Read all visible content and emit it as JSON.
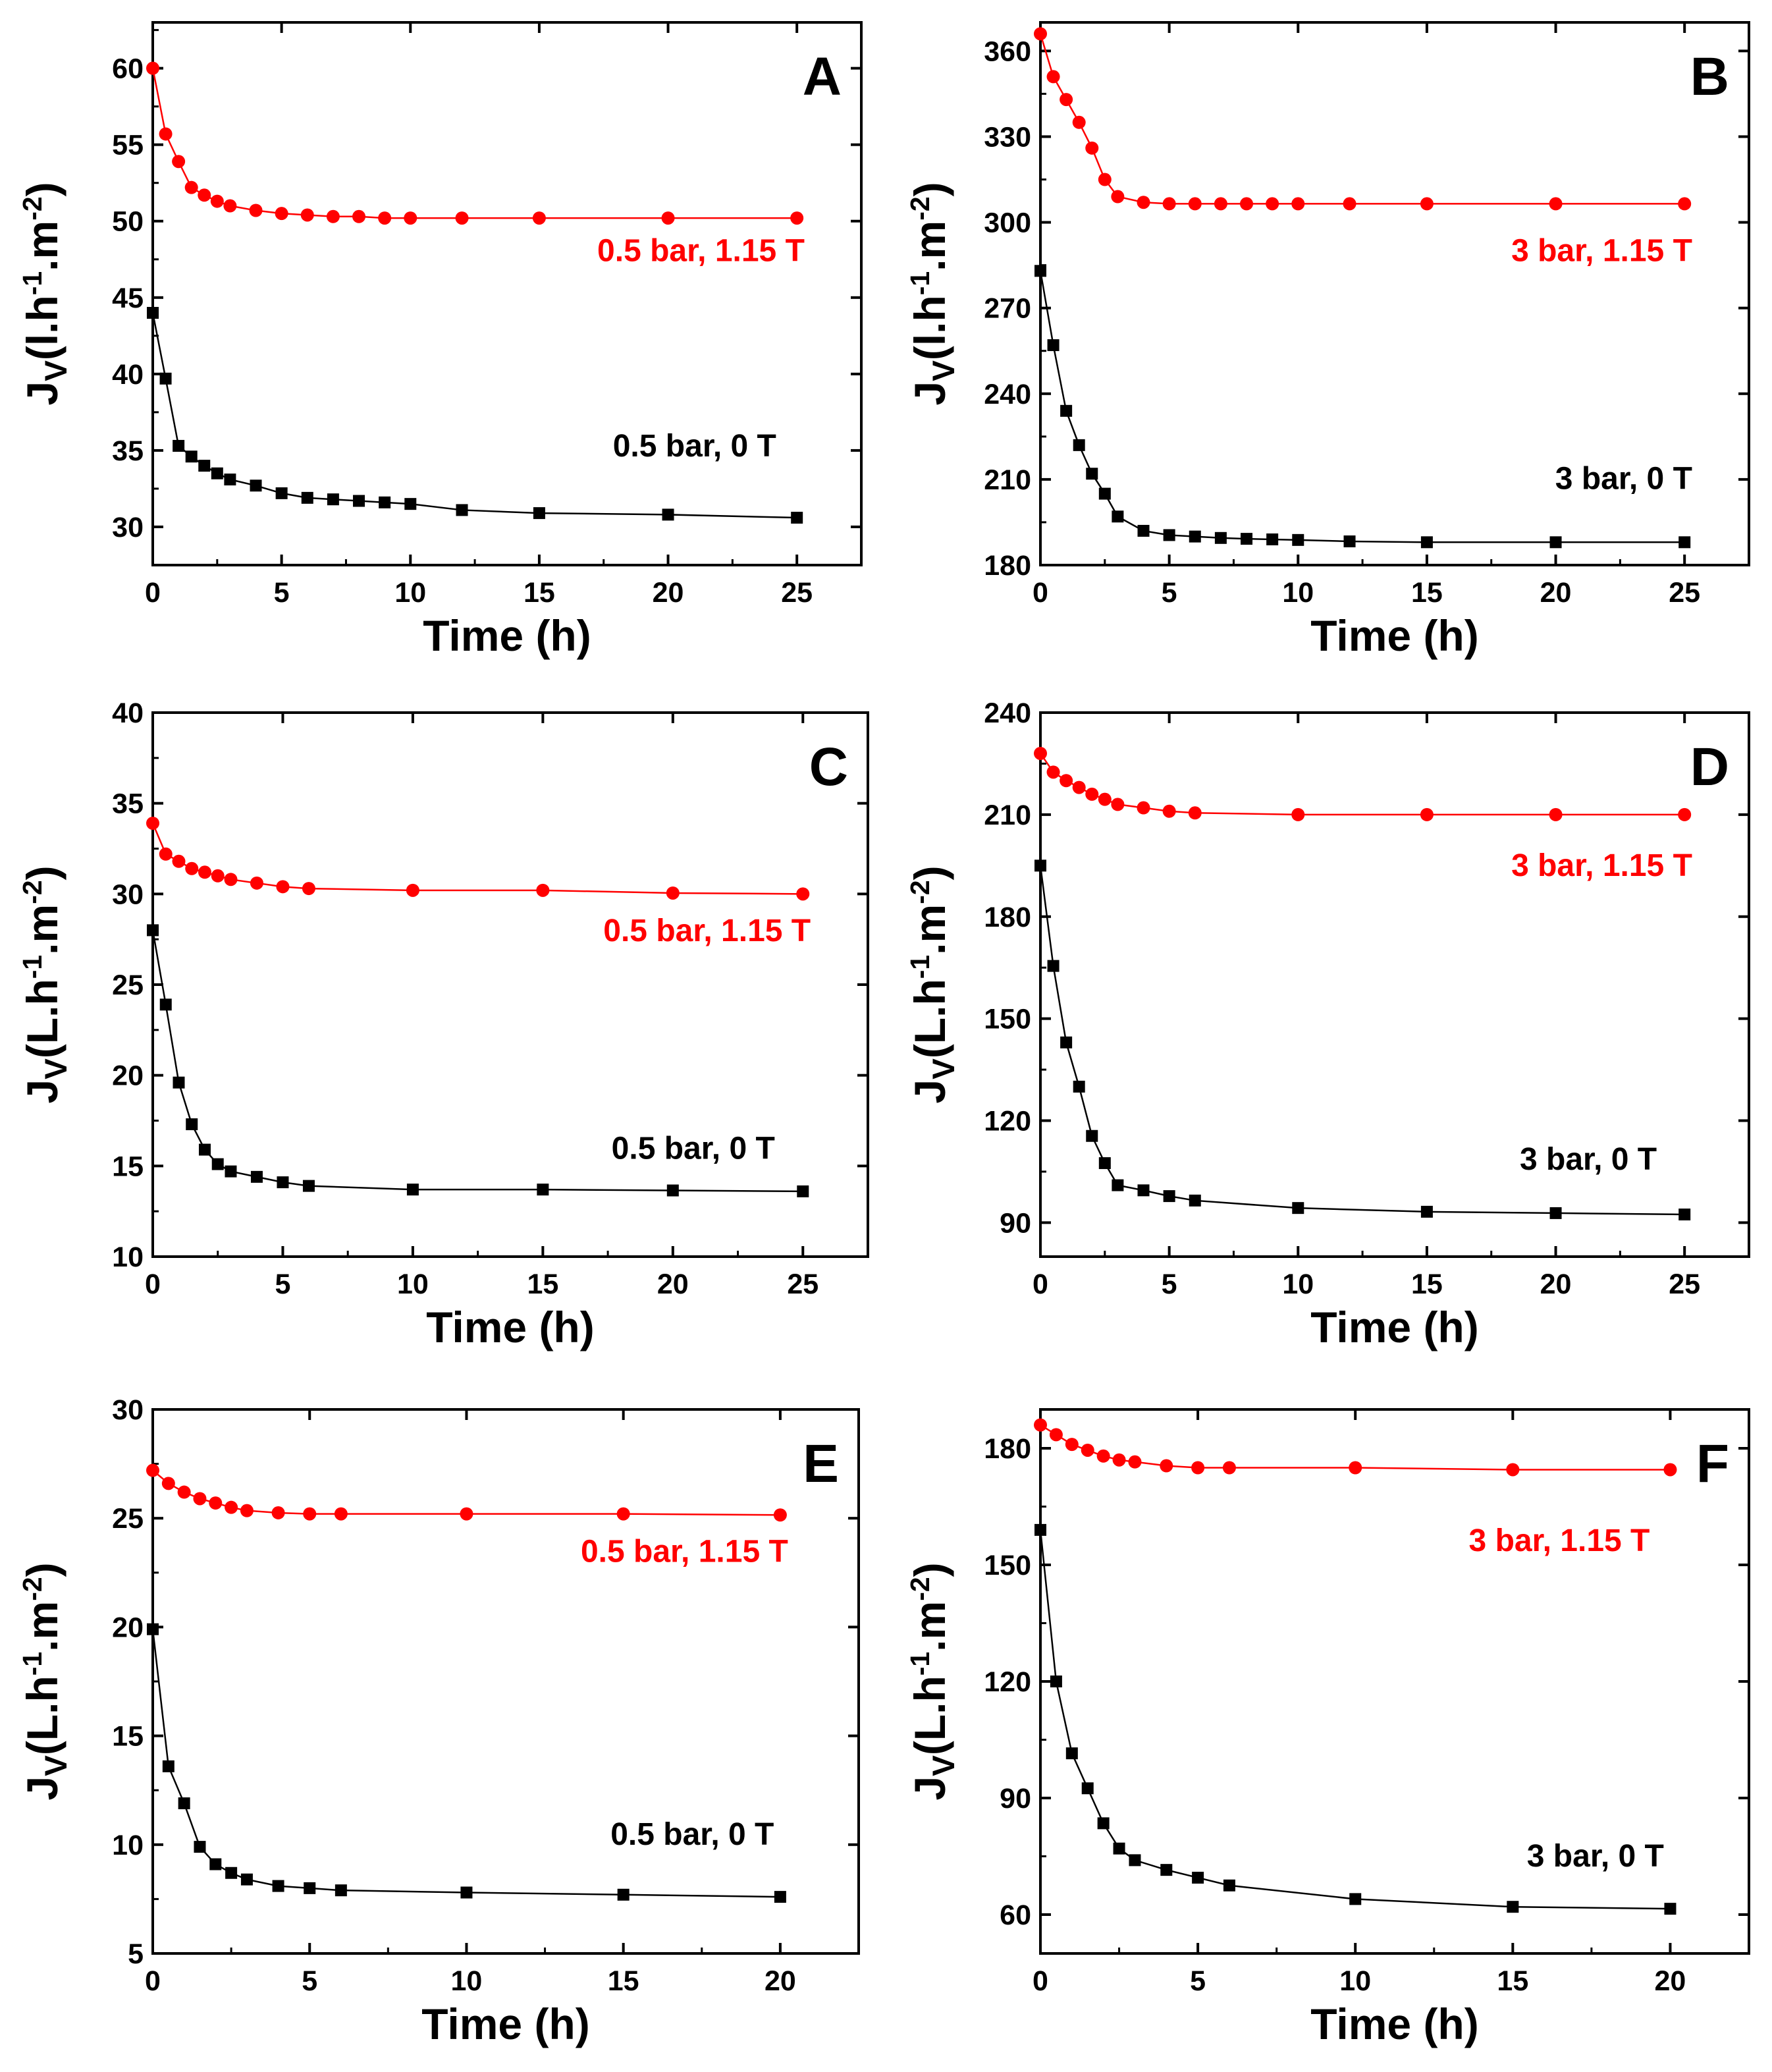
{
  "colors": {
    "magnetic": "#ff0000",
    "no_field": "#000000",
    "axes": "#000000"
  },
  "chart_data": [
    {
      "type": "line",
      "panel": "A",
      "xlabel": "Time (h)",
      "ylabel_main": "J",
      "ylabel_sub": "V",
      "ylabel_pre": "(l.h",
      "ylabel_sup1": "-1",
      "ylabel_mid": ".m",
      "ylabel_sup2": "-2",
      "ylabel_post": ")",
      "xlim": [
        0,
        27.5
      ],
      "ylim": [
        27.5,
        63
      ],
      "xticks": [
        0,
        5,
        10,
        15,
        20,
        25
      ],
      "yticks": [
        30,
        35,
        40,
        45,
        50,
        55,
        60
      ],
      "series": [
        {
          "name": "0.5 bar, 1.15 T",
          "color": "#ff0000",
          "marker": "circle",
          "x": [
            0,
            0.5,
            1,
            1.5,
            2,
            2.5,
            3,
            4,
            5,
            6,
            7,
            8,
            9,
            10,
            12,
            15,
            20,
            25
          ],
          "y": [
            60,
            55.7,
            53.9,
            52.2,
            51.7,
            51.3,
            51.0,
            50.7,
            50.5,
            50.4,
            50.3,
            50.3,
            50.2,
            50.2,
            50.2,
            50.2,
            50.2,
            50.2
          ]
        },
        {
          "name": "0.5 bar, 0 T",
          "color": "#000000",
          "marker": "square",
          "x": [
            0,
            0.5,
            1,
            1.5,
            2,
            2.5,
            3,
            4,
            5,
            6,
            7,
            8,
            9,
            10,
            12,
            15,
            20,
            25
          ],
          "y": [
            44,
            39.7,
            35.3,
            34.6,
            34.0,
            33.5,
            33.1,
            32.7,
            32.2,
            31.9,
            31.8,
            31.7,
            31.6,
            31.5,
            31.1,
            30.9,
            30.8,
            30.6
          ]
        }
      ]
    },
    {
      "type": "line",
      "panel": "B",
      "xlabel": "Time (h)",
      "ylabel_main": "J",
      "ylabel_sub": "V",
      "ylabel_pre": "(l.h",
      "ylabel_sup1": "-1",
      "ylabel_mid": ".m",
      "ylabel_sup2": "-2",
      "ylabel_post": ")",
      "xlim": [
        0,
        27.5
      ],
      "ylim": [
        180,
        370
      ],
      "xticks": [
        0,
        5,
        10,
        15,
        20,
        25
      ],
      "yticks": [
        180,
        210,
        240,
        270,
        300,
        330,
        360
      ],
      "series": [
        {
          "name": "3 bar, 1.15 T",
          "color": "#ff0000",
          "marker": "circle",
          "x": [
            0,
            0.5,
            1,
            1.5,
            2,
            2.5,
            3,
            4,
            5,
            6,
            7,
            8,
            9,
            10,
            12,
            15,
            20,
            25
          ],
          "y": [
            366,
            351,
            343,
            335,
            326,
            315,
            309,
            307,
            306.5,
            306.5,
            306.5,
            306.5,
            306.5,
            306.5,
            306.5,
            306.5,
            306.5,
            306.5
          ]
        },
        {
          "name": "3 bar, 0 T",
          "color": "#000000",
          "marker": "square",
          "x": [
            0,
            0.5,
            1,
            1.5,
            2,
            2.5,
            3,
            4,
            5,
            6,
            7,
            8,
            9,
            10,
            12,
            15,
            20,
            25
          ],
          "y": [
            283,
            257,
            234,
            222,
            212,
            205,
            197,
            192,
            190.5,
            190,
            189.5,
            189.2,
            189,
            188.8,
            188.3,
            188,
            188,
            188
          ]
        }
      ]
    },
    {
      "type": "line",
      "panel": "C",
      "xlabel": "Time (h)",
      "ylabel_main": "J",
      "ylabel_sub": "V",
      "ylabel_pre": "(L.h",
      "ylabel_sup1": "-1",
      "ylabel_mid": ".m",
      "ylabel_sup2": "-2",
      "ylabel_post": ")",
      "xlim": [
        0,
        27.5
      ],
      "ylim": [
        10,
        40
      ],
      "xticks": [
        0,
        5,
        10,
        15,
        20,
        25
      ],
      "yticks": [
        10,
        15,
        20,
        25,
        30,
        35,
        40
      ],
      "series": [
        {
          "name": "0.5 bar, 1.15 T",
          "color": "#ff0000",
          "marker": "circle",
          "x": [
            0,
            0.5,
            1,
            1.5,
            2,
            2.5,
            3,
            4,
            5,
            6,
            10,
            15,
            20,
            25
          ],
          "y": [
            33.9,
            32.2,
            31.8,
            31.4,
            31.2,
            31.0,
            30.8,
            30.6,
            30.4,
            30.3,
            30.2,
            30.2,
            30.05,
            30.0
          ]
        },
        {
          "name": "0.5 bar, 0 T",
          "color": "#000000",
          "marker": "square",
          "x": [
            0,
            0.5,
            1,
            1.5,
            2,
            2.5,
            3,
            4,
            5,
            6,
            10,
            15,
            20,
            25
          ],
          "y": [
            28,
            23.9,
            19.6,
            17.3,
            15.9,
            15.1,
            14.7,
            14.4,
            14.1,
            13.9,
            13.7,
            13.7,
            13.65,
            13.6
          ]
        }
      ]
    },
    {
      "type": "line",
      "panel": "D",
      "xlabel": "Time (h)",
      "ylabel_main": "J",
      "ylabel_sub": "V",
      "ylabel_pre": "(L.h",
      "ylabel_sup1": "-1",
      "ylabel_mid": ".m",
      "ylabel_sup2": "-2",
      "ylabel_post": ")",
      "xlim": [
        0,
        27.5
      ],
      "ylim": [
        80,
        240
      ],
      "xticks": [
        0,
        5,
        10,
        15,
        20,
        25
      ],
      "yticks": [
        90,
        120,
        150,
        180,
        210,
        240
      ],
      "series": [
        {
          "name": "3 bar, 1.15 T",
          "color": "#ff0000",
          "marker": "circle",
          "x": [
            0,
            0.5,
            1,
            1.5,
            2,
            2.5,
            3,
            4,
            5,
            6,
            10,
            15,
            20,
            25
          ],
          "y": [
            228,
            222.5,
            220,
            218,
            216,
            214.5,
            213,
            212,
            211,
            210.5,
            210,
            210,
            210,
            210
          ]
        },
        {
          "name": "3 bar, 0 T",
          "color": "#000000",
          "marker": "square",
          "x": [
            0,
            0.5,
            1,
            1.5,
            2,
            2.5,
            3,
            4,
            5,
            6,
            10,
            15,
            20,
            25
          ],
          "y": [
            195,
            165.5,
            143,
            130,
            115.5,
            107.5,
            101,
            99.5,
            97.8,
            96.5,
            94.3,
            93.2,
            92.8,
            92.4
          ]
        }
      ]
    },
    {
      "type": "line",
      "panel": "E",
      "xlabel": "Time (h)",
      "ylabel_main": "J",
      "ylabel_sub": "V",
      "ylabel_pre": "(L.h",
      "ylabel_sup1": "-1",
      "ylabel_mid": ".m",
      "ylabel_sup2": "-2",
      "ylabel_post": ")",
      "xlim": [
        0,
        22.5
      ],
      "ylim": [
        5,
        30
      ],
      "xticks": [
        0,
        5,
        10,
        15,
        20
      ],
      "yticks": [
        5,
        10,
        15,
        20,
        25,
        30
      ],
      "series": [
        {
          "name": "0.5 bar, 1.15 T",
          "color": "#ff0000",
          "marker": "circle",
          "x": [
            0,
            0.5,
            1,
            1.5,
            2,
            2.5,
            3,
            4,
            5,
            6,
            10,
            15,
            20
          ],
          "y": [
            27.2,
            26.6,
            26.2,
            25.9,
            25.7,
            25.5,
            25.35,
            25.25,
            25.2,
            25.2,
            25.2,
            25.2,
            25.15
          ]
        },
        {
          "name": "0.5 bar, 0 T",
          "color": "#000000",
          "marker": "square",
          "x": [
            0,
            0.5,
            1,
            1.5,
            2,
            2.5,
            3,
            4,
            5,
            6,
            10,
            15,
            20
          ],
          "y": [
            19.9,
            13.6,
            11.9,
            9.9,
            9.1,
            8.7,
            8.4,
            8.1,
            8.0,
            7.9,
            7.8,
            7.7,
            7.6
          ]
        }
      ]
    },
    {
      "type": "line",
      "panel": "F",
      "xlabel": "Time (h)",
      "ylabel_main": "J",
      "ylabel_sub": "V",
      "ylabel_pre": "(L.h",
      "ylabel_sup1": "-1",
      "ylabel_mid": ".m",
      "ylabel_sup2": "-2",
      "ylabel_post": ")",
      "xlim": [
        0,
        22.5
      ],
      "ylim": [
        50,
        190
      ],
      "xticks": [
        0,
        5,
        10,
        15,
        20
      ],
      "yticks": [
        60,
        90,
        120,
        150,
        180
      ],
      "series": [
        {
          "name": "3 bar, 1.15 T",
          "color": "#ff0000",
          "marker": "circle",
          "x": [
            0,
            0.5,
            1,
            1.5,
            2,
            2.5,
            3,
            4,
            5,
            6,
            10,
            15,
            20
          ],
          "y": [
            186,
            183.5,
            181,
            179.5,
            178,
            177,
            176.5,
            175.5,
            175,
            175,
            175,
            174.5,
            174.5
          ]
        },
        {
          "name": "3 bar, 0 T",
          "color": "#000000",
          "marker": "square",
          "x": [
            0,
            0.5,
            1,
            1.5,
            2,
            2.5,
            3,
            4,
            5,
            6,
            10,
            15,
            20
          ],
          "y": [
            159,
            120,
            101.5,
            92.5,
            83.5,
            77,
            74,
            71.5,
            69.5,
            67.5,
            64,
            62,
            61.5
          ]
        }
      ]
    }
  ]
}
